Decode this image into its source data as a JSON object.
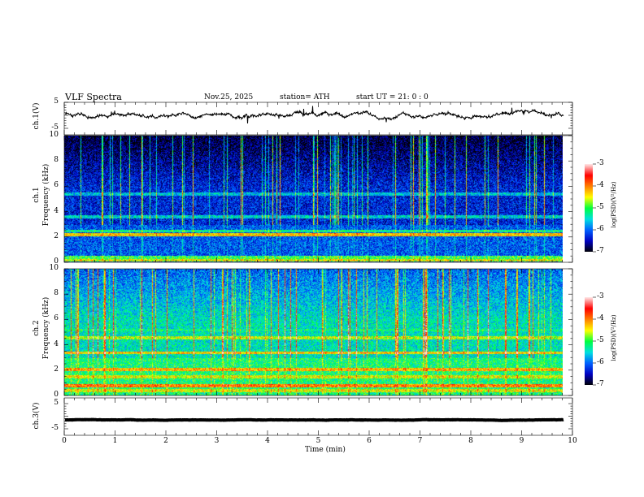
{
  "header": {
    "title": "VLF  Spectra",
    "date": "Nov.25, 2025",
    "station": "station= ATH",
    "start": "start  UT  =    21: 0  : 0"
  },
  "chart_data": {
    "type": "heatmap",
    "xlabel": "Time  (min)",
    "xlim": [
      0,
      10
    ],
    "x_ticks": [
      "0",
      "1",
      "2",
      "3",
      "4",
      "5",
      "6",
      "7",
      "8",
      "9",
      "10"
    ],
    "data_end_min": 9.83,
    "grid": false,
    "panels": [
      {
        "name": "ch1-waveform",
        "type": "line",
        "ylabel": "ch.1(V)",
        "ylim": [
          -5,
          5
        ],
        "y_ticks": [
          "5",
          "-5"
        ],
        "mean_level": 0.2
      },
      {
        "name": "ch1-spectrogram",
        "type": "heatmap",
        "ylabel_channel": "ch.1",
        "ylabel": "Frequency  (kHz)",
        "ylim": [
          0,
          10
        ],
        "y_ticks": [
          "10",
          "8",
          "6",
          "4",
          "2",
          "0"
        ],
        "background_log_psd": -6.3,
        "bands_khz": [
          0.2,
          0.4,
          2.2,
          2.5,
          3.6,
          5.4
        ],
        "band_log_psd": [
          -4.5,
          -5.0,
          -4.3,
          -5.2,
          -5.5,
          -5.6
        ]
      },
      {
        "name": "ch2-spectrogram",
        "type": "heatmap",
        "ylabel_channel": "ch.2",
        "ylabel": "Frequency  (kHz)",
        "ylim": [
          0,
          10
        ],
        "y_ticks": [
          "10",
          "8",
          "6",
          "4",
          "2",
          "0"
        ],
        "background_log_psd": -5.4,
        "bands_khz": [
          0.4,
          0.8,
          1.5,
          2.1,
          3.4,
          4.6,
          5.2
        ],
        "band_log_psd": [
          -4.5,
          -4.0,
          -4.5,
          -4.2,
          -4.3,
          -4.6,
          -5.2
        ]
      },
      {
        "name": "ch3-waveform",
        "type": "line",
        "ylabel": "ch.3(V)",
        "ylim": [
          -5,
          5
        ],
        "y_ticks": [
          "5",
          "-5"
        ],
        "mean_level": -1.5
      }
    ],
    "colorbar": {
      "label": "log(PSD)(V²/Hz)",
      "range": [
        -7,
        -3
      ],
      "ticks": [
        "-3",
        "-4",
        "-5",
        "-6",
        "-7"
      ],
      "colormap": [
        "#000000",
        "#0000c0",
        "#0060ff",
        "#00e0e0",
        "#00ff40",
        "#ffff00",
        "#ff8000",
        "#ff0000",
        "#ffe0e0"
      ]
    }
  }
}
